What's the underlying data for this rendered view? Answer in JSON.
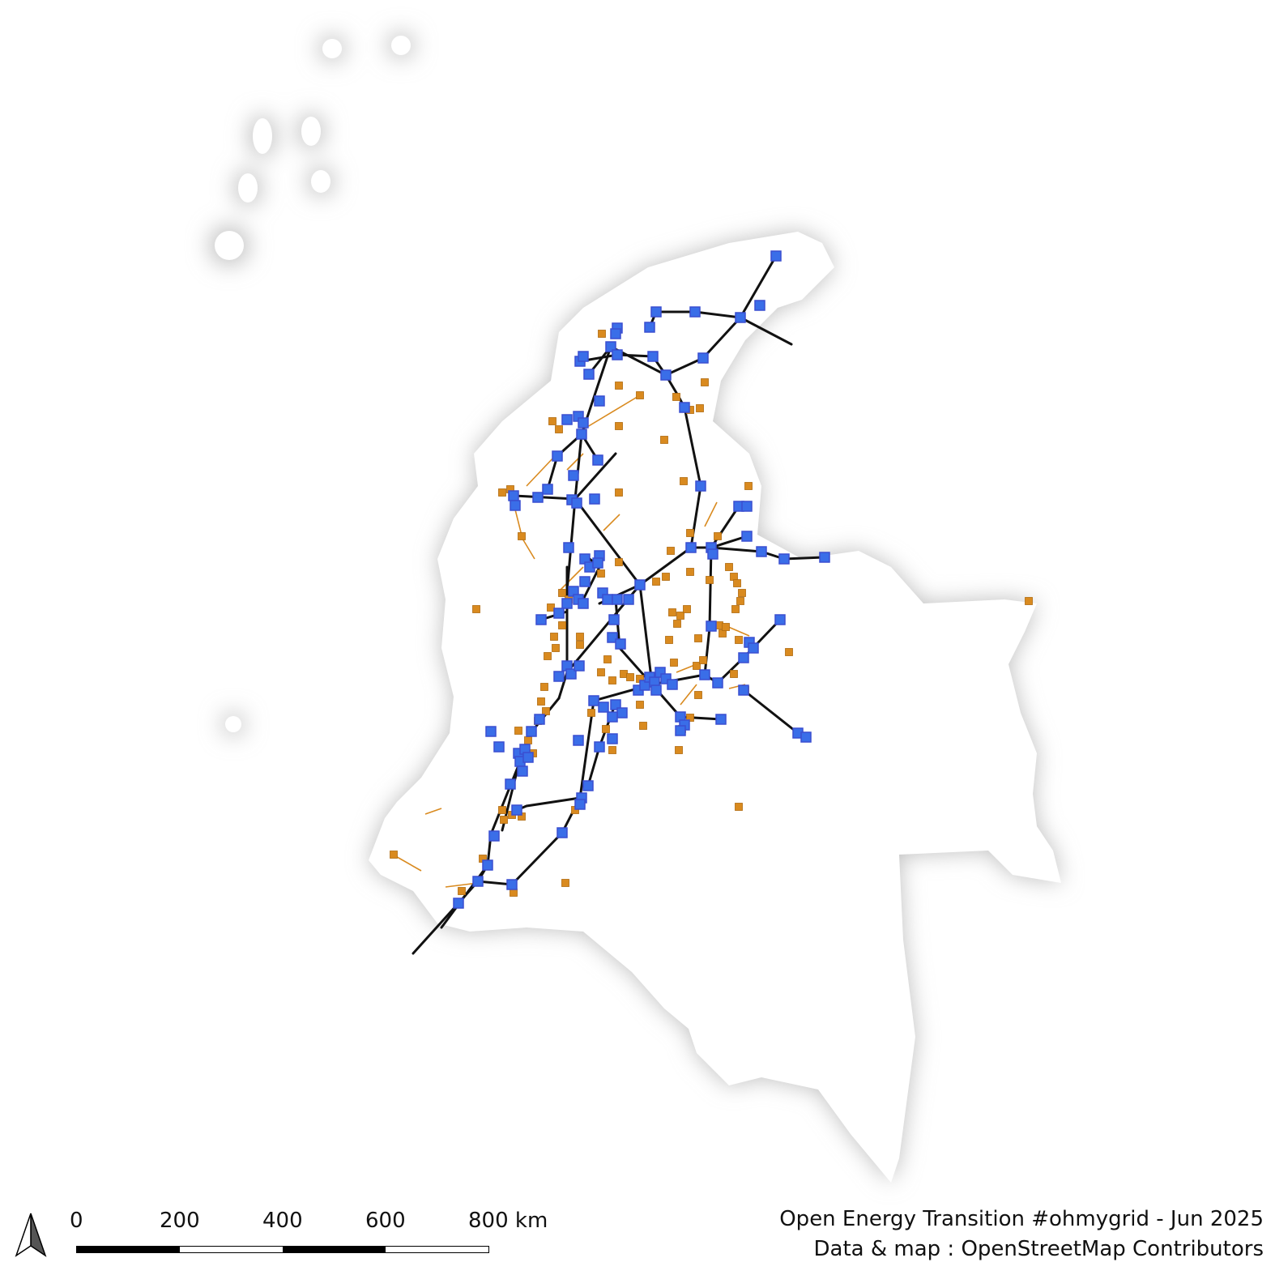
{
  "map": {
    "colors": {
      "land": "#ffffff",
      "shadow": "#bdbdbd",
      "line_hv": "#111111",
      "line_mv": "#d98a1f",
      "substation": "#3a6ee8",
      "substation_stroke": "#3a4fd0",
      "plant": "#d98a1f"
    },
    "icons": {
      "north_arrow": "north-arrow-icon"
    }
  },
  "scale": {
    "labels": [
      "0",
      "200",
      "400",
      "600",
      "800 km"
    ]
  },
  "credits": {
    "line1": "Open Energy Transition #ohmygrid - Jun 2025",
    "line2": "Data & map : OpenStreetMap Contributors"
  }
}
